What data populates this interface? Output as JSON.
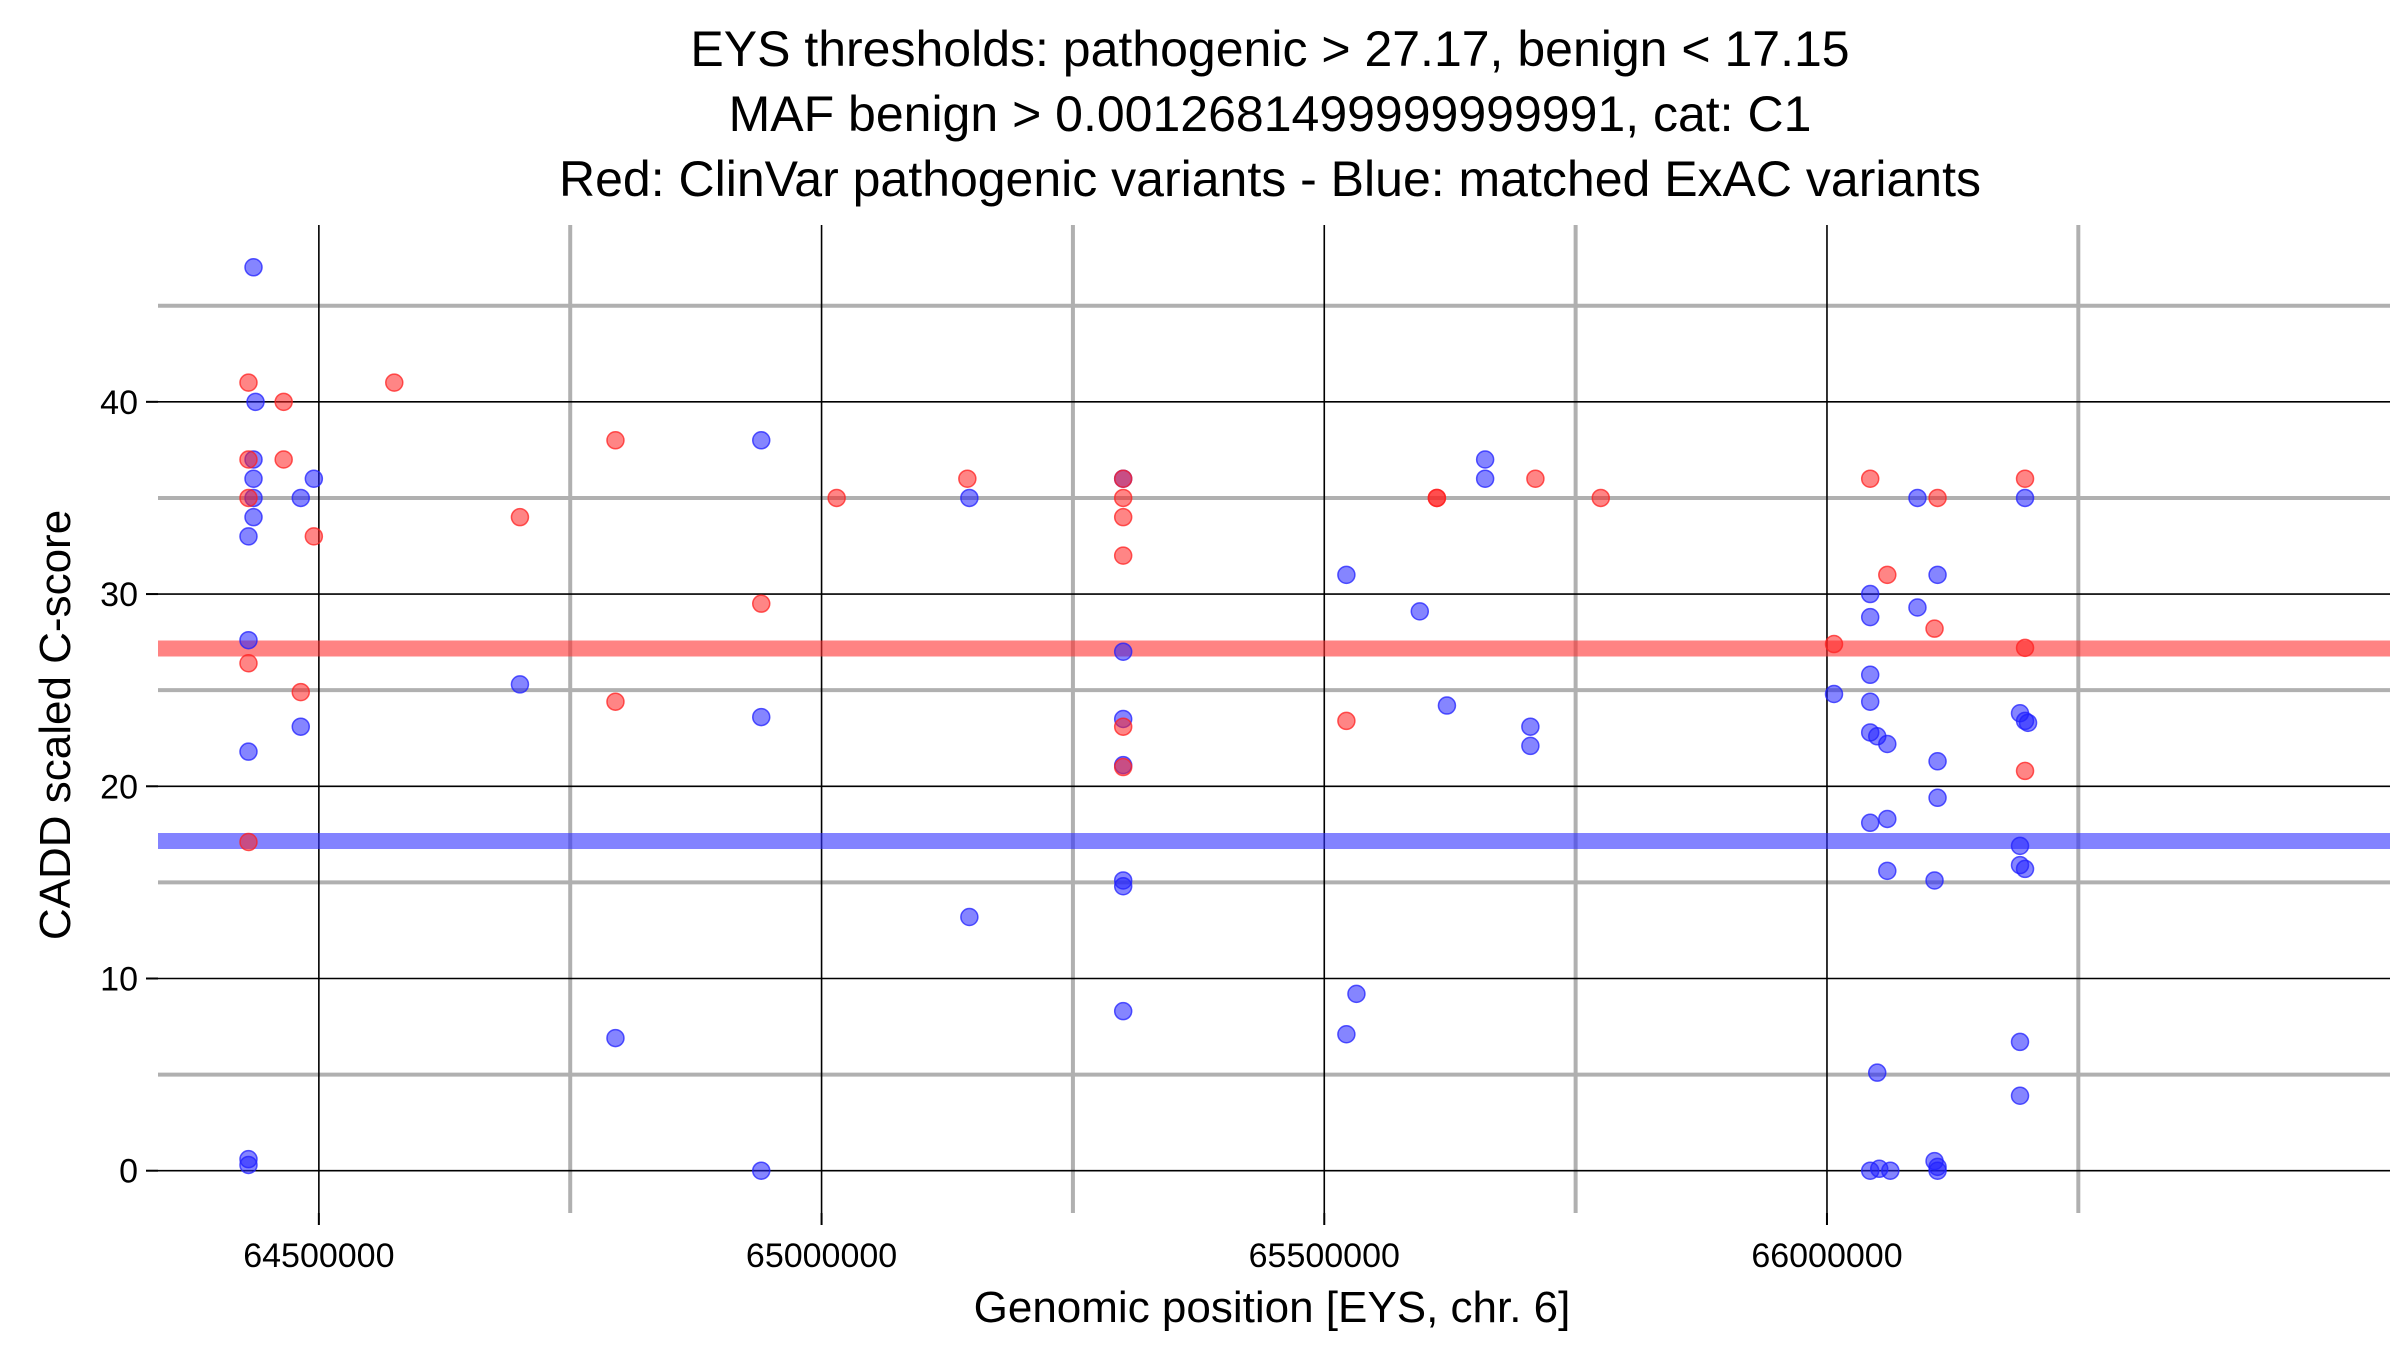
{
  "chart_data": {
    "type": "scatter",
    "title": [
      "EYS thresholds: pathogenic > 27.17, benign < 17.15",
      "MAF benign > 0.0012681499999999991, cat: C1",
      "Red: ClinVar pathogenic variants - Blue: matched ExAC variants"
    ],
    "xlabel": "Genomic position [EYS, chr. 6]",
    "ylabel": "CADD scaled C-score",
    "xlim": [
      64340000,
      66560000
    ],
    "ylim": [
      -2.2,
      49.2
    ],
    "xticks": [
      64500000,
      65000000,
      65500000,
      66000000
    ],
    "xtick_labels": [
      "64500000",
      "65000000",
      "65500000",
      "66000000"
    ],
    "yticks": [
      0,
      10,
      20,
      30,
      40
    ],
    "ytick_labels": [
      "0",
      "10",
      "20",
      "30",
      "40"
    ],
    "major_x_grid": [
      64500000,
      65000000,
      65500000,
      66000000
    ],
    "minor_x_grid": [
      64750000,
      65250000,
      65750000,
      66250000
    ],
    "major_y_grid": [
      0,
      10,
      20,
      30,
      40
    ],
    "minor_y_grid": [
      5,
      15,
      25,
      35,
      45
    ],
    "thresholds": [
      {
        "name": "pathogenic",
        "value": 27.17,
        "color": "#ff3030"
      },
      {
        "name": "benign",
        "value": 17.15,
        "color": "#3030ff"
      }
    ],
    "colors": {
      "pathogenic": "#ff2020",
      "benign": "#2020ff",
      "grid_major": "#000000",
      "grid_minor": "#b0b0b0"
    },
    "series": [
      {
        "name": "ClinVar pathogenic variants",
        "color": "#ff2020",
        "points": [
          [
            64430000,
            41
          ],
          [
            64430000,
            37
          ],
          [
            64430000,
            35
          ],
          [
            64430000,
            26.4
          ],
          [
            64430000,
            17.1
          ],
          [
            64465000,
            40
          ],
          [
            64465000,
            37
          ],
          [
            64482000,
            24.9
          ],
          [
            64495000,
            33
          ],
          [
            64575000,
            41
          ],
          [
            64700000,
            34
          ],
          [
            64795000,
            38
          ],
          [
            64795000,
            24.4
          ],
          [
            64940000,
            29.5
          ],
          [
            65015000,
            35
          ],
          [
            65145000,
            36
          ],
          [
            65300000,
            36
          ],
          [
            65300000,
            35
          ],
          [
            65300000,
            34
          ],
          [
            65300000,
            32
          ],
          [
            65300000,
            23.1
          ],
          [
            65300000,
            21
          ],
          [
            65522000,
            23.4
          ],
          [
            65612000,
            35
          ],
          [
            65612000,
            35
          ],
          [
            65710000,
            36
          ],
          [
            65775000,
            35
          ],
          [
            66007000,
            27.4
          ],
          [
            66043000,
            36
          ],
          [
            66060000,
            31
          ],
          [
            66110000,
            35
          ],
          [
            66107000,
            28.2
          ],
          [
            66197000,
            36
          ],
          [
            66197000,
            27.2
          ],
          [
            66197000,
            20.8
          ]
        ]
      },
      {
        "name": "matched ExAC variants",
        "color": "#2020ff",
        "points": [
          [
            64435000,
            47
          ],
          [
            64437000,
            40
          ],
          [
            64435000,
            37
          ],
          [
            64435000,
            36
          ],
          [
            64435000,
            35
          ],
          [
            64435000,
            34
          ],
          [
            64430000,
            33
          ],
          [
            64430000,
            27.6
          ],
          [
            64430000,
            21.8
          ],
          [
            64430000,
            0.6
          ],
          [
            64430000,
            0.3
          ],
          [
            64482000,
            35
          ],
          [
            64495000,
            36
          ],
          [
            64482000,
            23.1
          ],
          [
            64700000,
            25.3
          ],
          [
            64795000,
            6.9
          ],
          [
            64940000,
            38
          ],
          [
            64940000,
            23.6
          ],
          [
            64940000,
            0
          ],
          [
            65147000,
            35
          ],
          [
            65147000,
            13.2
          ],
          [
            65300000,
            36
          ],
          [
            65300000,
            27
          ],
          [
            65300000,
            23.5
          ],
          [
            65300000,
            21.1
          ],
          [
            65300000,
            15.1
          ],
          [
            65300000,
            14.8
          ],
          [
            65300000,
            8.3
          ],
          [
            65522000,
            31
          ],
          [
            65522000,
            7.1
          ],
          [
            65532000,
            9.2
          ],
          [
            65595000,
            29.1
          ],
          [
            65622000,
            24.2
          ],
          [
            65660000,
            37
          ],
          [
            65660000,
            36
          ],
          [
            65705000,
            23.1
          ],
          [
            65705000,
            22.1
          ],
          [
            66007000,
            24.8
          ],
          [
            66043000,
            30
          ],
          [
            66043000,
            28.8
          ],
          [
            66043000,
            25.8
          ],
          [
            66043000,
            24.4
          ],
          [
            66043000,
            22.8
          ],
          [
            66050000,
            22.6
          ],
          [
            66060000,
            22.2
          ],
          [
            66043000,
            18.1
          ],
          [
            66060000,
            18.3
          ],
          [
            66060000,
            15.6
          ],
          [
            66050000,
            5.1
          ],
          [
            66043000,
            0
          ],
          [
            66052000,
            0.1
          ],
          [
            66063000,
            0
          ],
          [
            66090000,
            35
          ],
          [
            66090000,
            29.3
          ],
          [
            66110000,
            31
          ],
          [
            66110000,
            21.3
          ],
          [
            66110000,
            19.4
          ],
          [
            66107000,
            15.1
          ],
          [
            66107000,
            0.5
          ],
          [
            66110000,
            0.2
          ],
          [
            66110000,
            0
          ],
          [
            66197000,
            35
          ],
          [
            66192000,
            23.8
          ],
          [
            66197000,
            23.4
          ],
          [
            66200000,
            23.3
          ],
          [
            66192000,
            16.9
          ],
          [
            66192000,
            15.9
          ],
          [
            66197000,
            15.7
          ],
          [
            66192000,
            6.7
          ],
          [
            66192000,
            3.9
          ]
        ]
      }
    ]
  }
}
